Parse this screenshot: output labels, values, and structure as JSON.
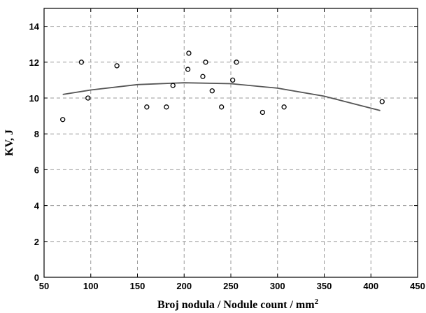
{
  "chart_data": {
    "type": "scatter",
    "xlabel": "Broj nodula / Nodule count / mm",
    "xlabel_superscript": "2",
    "ylabel": "KV, J",
    "xlim": [
      50,
      450
    ],
    "ylim": [
      0,
      15
    ],
    "x_ticks": [
      50,
      100,
      150,
      200,
      250,
      300,
      350,
      400,
      450
    ],
    "y_ticks": [
      0,
      2,
      4,
      6,
      8,
      10,
      12,
      14
    ],
    "grid": true,
    "marker": "open-circle",
    "series": [
      {
        "x": [
          70,
          90,
          97,
          128,
          160,
          181,
          188,
          204,
          205,
          220,
          223,
          230,
          240,
          252,
          256,
          284,
          307,
          412
        ],
        "y": [
          8.8,
          12.0,
          10.0,
          11.8,
          9.5,
          9.5,
          10.7,
          11.6,
          12.5,
          11.2,
          12.0,
          10.4,
          9.5,
          11.0,
          12.0,
          9.2,
          9.5,
          9.8
        ]
      }
    ],
    "fit_line": {
      "type": "quadratic",
      "x": [
        70,
        100,
        150,
        200,
        250,
        300,
        350,
        410
      ],
      "y": [
        10.2,
        10.45,
        10.75,
        10.85,
        10.8,
        10.55,
        10.1,
        9.3
      ]
    }
  },
  "colors": {
    "grid": "#9a9a9a",
    "frame": "#000000",
    "points": "#000000",
    "fit_line": "#555555"
  }
}
